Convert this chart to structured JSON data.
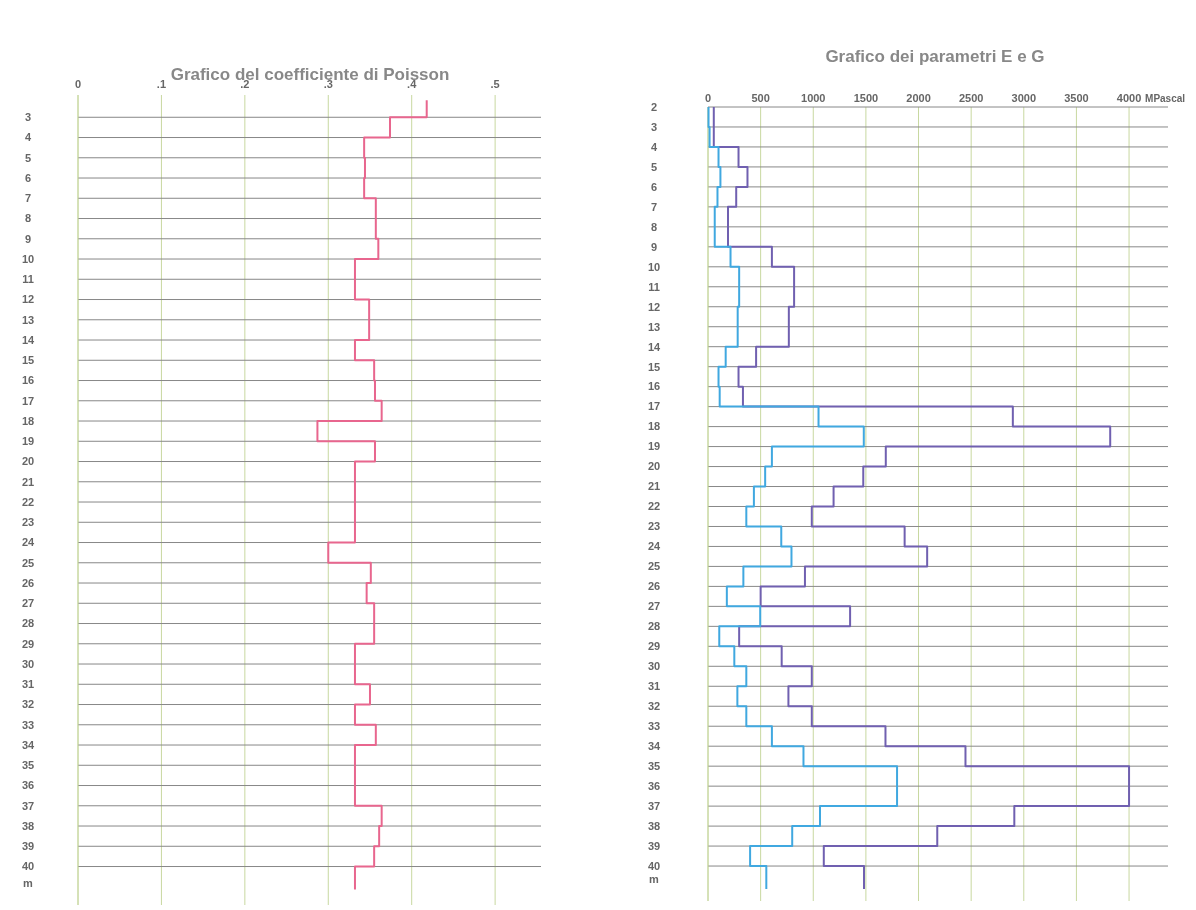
{
  "chart_data": [
    {
      "type": "step",
      "orientation": "horizontal",
      "title": "Grafico del coefficiente di Poisson",
      "ylabel": "m",
      "grid": true,
      "x": [
        2.16,
        3,
        4,
        5,
        6,
        7,
        8,
        9,
        10,
        11,
        12,
        13,
        14,
        15,
        16,
        17,
        18,
        19,
        20,
        21,
        22,
        23,
        24,
        25,
        26,
        27,
        28,
        29,
        30,
        31,
        32,
        33,
        34,
        35,
        36,
        37,
        38,
        39,
        40,
        41.13
      ],
      "series": [
        {
          "color": "#e8668e",
          "values": [
            0.418,
            0.374,
            0.343,
            0.344,
            0.343,
            0.357,
            0.357,
            0.36,
            0.332,
            0.332,
            0.349,
            0.349,
            0.332,
            0.355,
            0.356,
            0.364,
            0.287,
            0.356,
            0.332,
            0.332,
            0.332,
            0.332,
            0.3,
            0.351,
            0.346,
            0.355,
            0.355,
            0.332,
            0.332,
            0.35,
            0.332,
            0.357,
            0.332,
            0.332,
            0.332,
            0.364,
            0.361,
            0.355,
            0.332,
            0.332
          ]
        }
      ],
      "xlim": [
        0,
        0.555
      ],
      "xticks": [
        0,
        {
          "value": 0.1,
          "label": ".1"
        },
        {
          "value": 0.2,
          "label": ".2"
        },
        {
          "value": 0.3,
          "label": ".3"
        },
        {
          "value": 0.4,
          "label": ".4"
        },
        {
          "value": 0.5,
          "label": ".5"
        }
      ],
      "ylim": [
        41.9,
        1.9
      ],
      "yticks": [
        3,
        4,
        5,
        6,
        7,
        8,
        9,
        10,
        11,
        12,
        13,
        14,
        15,
        16,
        17,
        18,
        19,
        20,
        21,
        22,
        23,
        24,
        25,
        26,
        27,
        28,
        29,
        30,
        31,
        32,
        33,
        34,
        35,
        36,
        37,
        38,
        39,
        40
      ]
    },
    {
      "type": "step",
      "orientation": "horizontal",
      "title": "Grafico dei parametri E e G",
      "xlabel": "MPascal",
      "ylabel": "m",
      "grid": true,
      "x": [
        2,
        3,
        4,
        5,
        6,
        7,
        8,
        9,
        10,
        11,
        12,
        13,
        14,
        15,
        16,
        17,
        18,
        19,
        20,
        21,
        22,
        23,
        24,
        25,
        26,
        27,
        28,
        29,
        30,
        31,
        32,
        33,
        34,
        35,
        36,
        37,
        38,
        39,
        40,
        41.15
      ],
      "series": [
        {
          "color": "#7060b0",
          "values": [
            55,
            55,
            290,
            375,
            268,
            190,
            190,
            607,
            818,
            818,
            768,
            768,
            457,
            290,
            332,
            2896,
            3821,
            1689,
            1475,
            1193,
            986,
            1868,
            2082,
            921,
            500,
            1350,
            296,
            700,
            986,
            764,
            986,
            1686,
            2446,
            4000,
            4000,
            2910,
            2178,
            1100,
            1482,
            1482
          ]
        },
        {
          "color": "#40a8e0",
          "values": [
            5,
            15,
            100,
            118,
            90,
            64,
            64,
            214,
            296,
            296,
            282,
            282,
            168,
            100,
            111,
            1050,
            1480,
            607,
            543,
            436,
            364,
            696,
            793,
            336,
            179,
            496,
            107,
            250,
            364,
            279,
            364,
            607,
            907,
            1796,
            1796,
            1064,
            800,
            400,
            554,
            554
          ]
        }
      ],
      "xlim": [
        0,
        4370
      ],
      "xticks": [
        0,
        500,
        1000,
        1500,
        2000,
        2500,
        3000,
        3500,
        4000
      ],
      "ylim": [
        41.75,
        2
      ],
      "yticks": [
        2,
        3,
        4,
        5,
        6,
        7,
        8,
        9,
        10,
        11,
        12,
        13,
        14,
        15,
        16,
        17,
        18,
        19,
        20,
        21,
        22,
        23,
        24,
        25,
        26,
        27,
        28,
        29,
        30,
        31,
        32,
        33,
        34,
        35,
        36,
        37,
        38,
        39,
        40
      ]
    }
  ]
}
